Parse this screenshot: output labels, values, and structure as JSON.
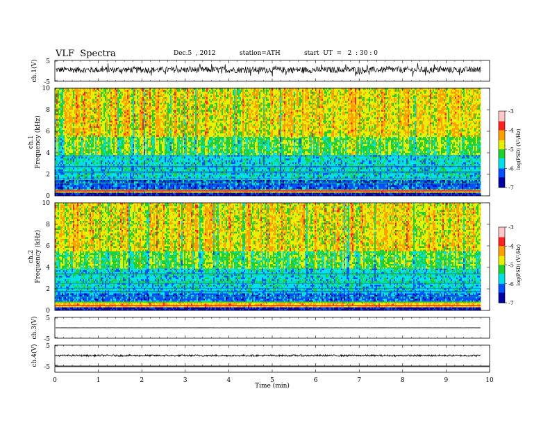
{
  "header": {
    "title": "VLF  Spectra",
    "date": "Dec.5  , 2012",
    "station": "station=ATH",
    "start": "start  UT  =   2  : 30 : 0"
  },
  "panels": {
    "ch1_wave": {
      "label": "ch.1(V)",
      "ticks": [
        "5",
        "-5"
      ]
    },
    "ch1_spec": {
      "label": "ch.1",
      "label2": "Frequency  (kHz)",
      "ticks": [
        "10",
        "8",
        "6",
        "4",
        "2",
        "0"
      ]
    },
    "ch2_spec": {
      "label": "ch.2",
      "label2": "Frequency  (kHz)",
      "ticks": [
        "10",
        "8",
        "6",
        "4",
        "2",
        "0"
      ]
    },
    "ch3_wave": {
      "label": "ch.3(V)",
      "ticks": [
        "5",
        "-5"
      ]
    },
    "ch4_wave": {
      "label": "ch.4(V)",
      "ticks": [
        "5",
        "-5"
      ]
    }
  },
  "colorbar": {
    "label": "log(PSD) (V²/Hz)",
    "ticks": [
      "-3",
      "-4",
      "-5",
      "-6",
      "-7"
    ]
  },
  "colors": {
    "dark_blue": "#0000a0",
    "blue": "#0050ff",
    "cyan": "#00e0e8",
    "green": "#20d030",
    "yellow": "#e8f000",
    "orange": "#ffa000",
    "red": "#ff2020",
    "pink": "#ffc8c8"
  },
  "chart_data": {
    "type": "heatmap",
    "title": "VLF  Spectra",
    "xlabel": "Time  (min)",
    "xlim": [
      0,
      10
    ],
    "xticks": [
      "0",
      "1",
      "2",
      "3",
      "4",
      "5",
      "6",
      "7",
      "8",
      "9",
      "10"
    ],
    "data_end_min": 9.8,
    "ylabel": "Frequency  (kHz)",
    "ylim": [
      0,
      10
    ],
    "color_scale": "log(PSD) (V²/Hz)",
    "color_range": [
      -7,
      -3
    ],
    "series": [
      {
        "name": "ch.1",
        "freq_bands_kHz": [
          {
            "range": [
              0,
              0.3
            ],
            "log_psd": -6.8
          },
          {
            "range": [
              0.3,
              0.6
            ],
            "log_psd": -4.0
          },
          {
            "range": [
              0.6,
              1.5
            ],
            "log_psd": -6.3
          },
          {
            "range": [
              1.5,
              3.8
            ],
            "log_psd": -5.6
          },
          {
            "range": [
              3.8,
              5.5
            ],
            "log_psd": -4.8
          },
          {
            "range": [
              5.5,
              10
            ],
            "log_psd": -4.1
          }
        ]
      },
      {
        "name": "ch.2",
        "freq_bands_kHz": [
          {
            "range": [
              0,
              0.3
            ],
            "log_psd": -6.8
          },
          {
            "range": [
              0.3,
              0.8
            ],
            "log_psd": -3.9
          },
          {
            "range": [
              0.8,
              1.6
            ],
            "log_psd": -6.2
          },
          {
            "range": [
              1.6,
              3.9
            ],
            "log_psd": -5.6
          },
          {
            "range": [
              3.9,
              5.5
            ],
            "log_psd": -4.8
          },
          {
            "range": [
              5.5,
              10
            ],
            "log_psd": -4.1
          }
        ]
      }
    ],
    "waveforms": [
      {
        "name": "ch.1(V)",
        "ylim": [
          -5,
          5
        ],
        "mean_v": 0.5,
        "noise_amp_v": 1.5
      },
      {
        "name": "ch.3(V)",
        "ylim": [
          -5,
          5
        ],
        "mean_v": 0.0,
        "noise_amp_v": 0.05
      },
      {
        "name": "ch.4(V)",
        "ylim": [
          -5,
          5
        ],
        "mean_v": 0.0,
        "noise_amp_v": 0.4
      }
    ]
  }
}
